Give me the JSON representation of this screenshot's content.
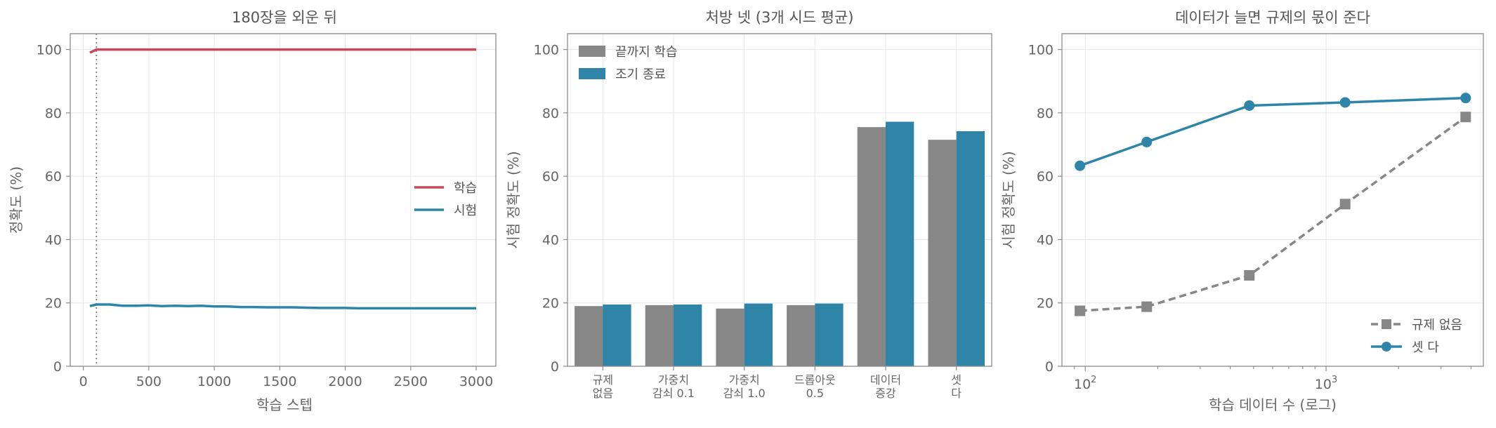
{
  "colors": {
    "train": "#c8485a",
    "test": "#2e85a8",
    "gray": "#878787",
    "blue": "#2e85a8"
  },
  "chart_data": [
    {
      "type": "line",
      "title": "180장을 외운 뒤",
      "xlabel": "학습 스텝",
      "ylabel": "정확도 (%)",
      "xlim": [
        -100,
        3150
      ],
      "ylim": [
        0,
        105
      ],
      "xticks": [
        0,
        500,
        1000,
        1500,
        2000,
        2500,
        3000
      ],
      "yticks": [
        0,
        20,
        40,
        60,
        80,
        100
      ],
      "grid": true,
      "legend_position": "center-right",
      "vline_x": 100,
      "series": [
        {
          "name": "학습",
          "x": [
            50,
            100,
            200,
            500,
            1000,
            1500,
            2000,
            2500,
            3000
          ],
          "y": [
            99,
            100,
            100,
            100,
            100,
            100,
            100,
            100,
            100
          ]
        },
        {
          "name": "시험",
          "x": [
            50,
            100,
            200,
            300,
            400,
            500,
            600,
            700,
            800,
            900,
            1000,
            1100,
            1200,
            1300,
            1400,
            1500,
            1600,
            1700,
            1800,
            1900,
            2000,
            2100,
            2200,
            2300,
            2400,
            2500,
            2600,
            2700,
            2800,
            2900,
            3000
          ],
          "y": [
            19.0,
            19.5,
            19.5,
            19.1,
            19.1,
            19.2,
            19.0,
            19.1,
            19.0,
            19.1,
            18.9,
            18.9,
            18.7,
            18.7,
            18.6,
            18.6,
            18.6,
            18.5,
            18.4,
            18.4,
            18.4,
            18.3,
            18.3,
            18.3,
            18.3,
            18.3,
            18.3,
            18.3,
            18.3,
            18.3,
            18.3
          ]
        }
      ]
    },
    {
      "type": "bar",
      "title": "처방 넷 (3개 시드 평균)",
      "xlabel": "",
      "ylabel": "시험 정확도 (%)",
      "ylim": [
        0,
        105
      ],
      "yticks": [
        0,
        20,
        40,
        60,
        80,
        100
      ],
      "grid": true,
      "legend_position": "top-left",
      "categories": [
        [
          "규제",
          "없음"
        ],
        [
          "가중치",
          "감쇠 0.1"
        ],
        [
          "가중치",
          "감쇠 1.0"
        ],
        [
          "드롭아웃",
          "0.5"
        ],
        [
          "데이터",
          "증강"
        ],
        [
          "셋",
          "다"
        ]
      ],
      "series": [
        {
          "name": "끝까지 학습",
          "values": [
            19.0,
            19.3,
            18.2,
            19.3,
            75.5,
            71.5
          ]
        },
        {
          "name": "조기 종료",
          "values": [
            19.5,
            19.5,
            19.8,
            19.8,
            77.2,
            74.2
          ]
        }
      ]
    },
    {
      "type": "line",
      "title": "데이터가 늘면 규제의 몫이 준다",
      "xlabel": "학습 데이터 수 (로그)",
      "ylabel": "시험 정확도 (%)",
      "xscale": "log",
      "xlim": [
        80,
        4500
      ],
      "ylim": [
        0,
        105
      ],
      "xticks": [
        100,
        1000
      ],
      "xtick_labels": [
        [
          "10",
          "2"
        ],
        [
          "10",
          "3"
        ]
      ],
      "yticks": [
        0,
        20,
        40,
        60,
        80,
        100
      ],
      "grid": true,
      "legend_position": "bottom-right",
      "series": [
        {
          "name": "규제 없음",
          "x": [
            95,
            180,
            480,
            1200,
            3800
          ],
          "y": [
            17.5,
            18.8,
            28.7,
            51.2,
            78.7
          ]
        },
        {
          "name": "셋 다",
          "x": [
            95,
            180,
            480,
            1200,
            3800
          ],
          "y": [
            63.3,
            70.8,
            82.3,
            83.3,
            84.7
          ]
        }
      ]
    }
  ]
}
